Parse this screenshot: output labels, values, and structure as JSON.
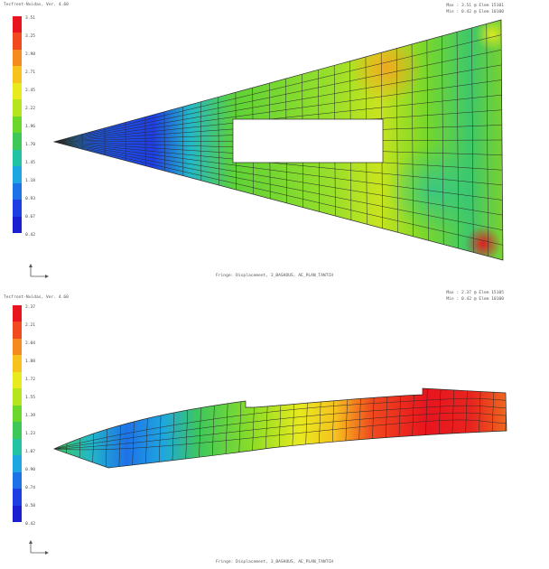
{
  "panels": [
    {
      "app_title": "Tecfront-Nvidas, Ver. 4.60",
      "max_text": "Max : 3.51 @ Elem 15101",
      "min_text": "Min : 0.42 @ Elem 10100",
      "legend_ticks": [
        "3.51",
        "3.25",
        "2.98",
        "2.71",
        "2.45",
        "2.22",
        "1.96",
        "1.70",
        "1.45",
        "1.18",
        "0.93",
        "0.67",
        "0.42"
      ],
      "fringe_caption": "Fringe: Displacement, 3_BASHOUS, AE_PLAN_TANTCH"
    },
    {
      "app_title": "Tecfront-Nvidas, Ver. 4.60",
      "max_text": "Max : 2.37 @ Elem 15105",
      "min_text": "Min : 0.42 @ Elem 10100",
      "legend_ticks": [
        "2.37",
        "2.21",
        "2.04",
        "1.88",
        "1.72",
        "1.55",
        "1.39",
        "1.23",
        "1.07",
        "0.90",
        "0.74",
        "0.58",
        "0.42"
      ],
      "fringe_caption": "Fringe: Displacement, 3_BASHOUS, AE_PLAN_TANTCH"
    }
  ],
  "colors": {
    "legend_scale": [
      "#e8141e",
      "#f04a1e",
      "#f58a1e",
      "#f6c21e",
      "#e6ea1e",
      "#b6e41e",
      "#6cd62a",
      "#3ec85a",
      "#22c2a2",
      "#1ea6e0",
      "#1e72e8",
      "#1e3ee4",
      "#1a20d2"
    ],
    "mesh_line": "#2a2a2a"
  }
}
